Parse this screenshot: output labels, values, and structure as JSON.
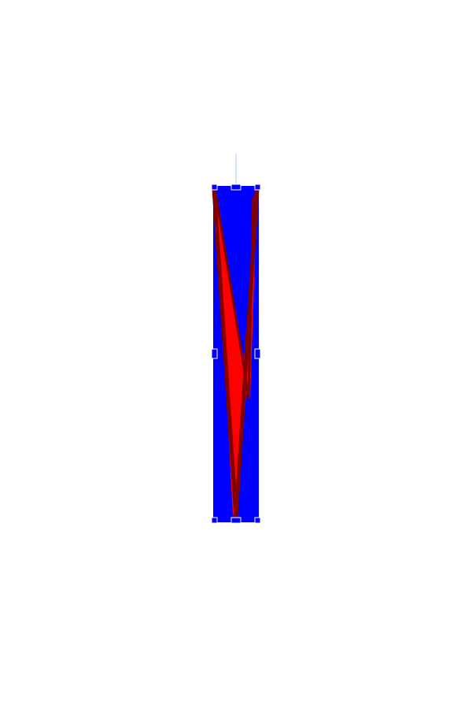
{
  "canvas": {
    "background": "#ffffff"
  },
  "shape": {
    "kind": "rectangle",
    "fill": "#0000ff",
    "selected": true
  },
  "artwork": {
    "fill": "#ff0000",
    "stroke": "#800000",
    "description_icon": "chevron-down-icon"
  },
  "selection": {
    "handle_color": "#ffffff",
    "rotate_line_color": "#a8c8e8",
    "handles": [
      "top-left",
      "top-center",
      "top-right",
      "middle-left",
      "middle-right",
      "bottom-left",
      "bottom-center",
      "bottom-right"
    ]
  }
}
